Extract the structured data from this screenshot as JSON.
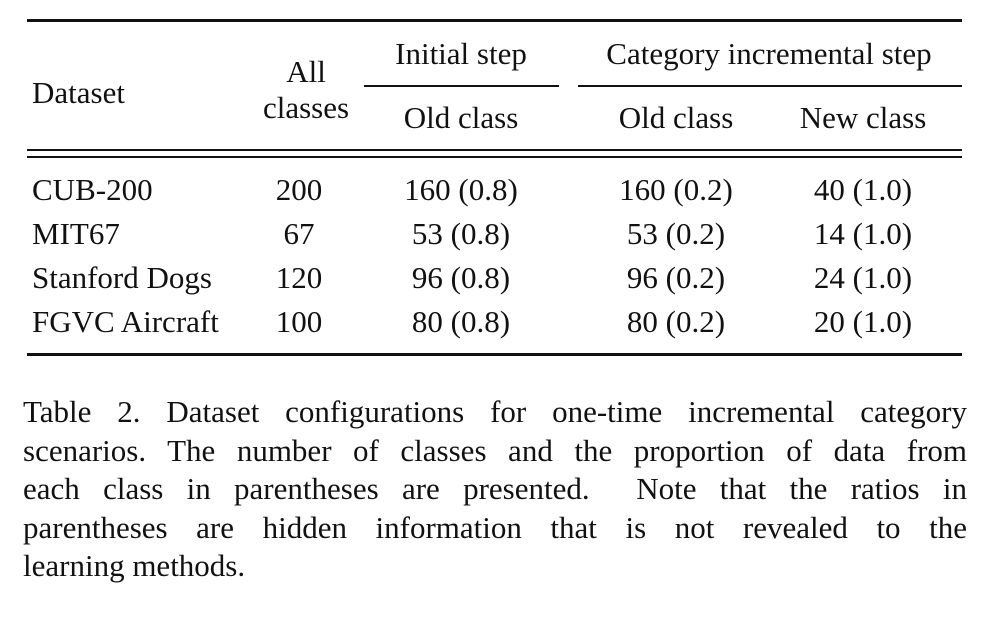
{
  "table": {
    "header": {
      "dataset": "Dataset",
      "all_classes_line1": "All",
      "all_classes_line2": "classes",
      "initial_step": "Initial step",
      "incremental_step": "Category incremental step",
      "initial_old_class": "Old class",
      "incremental_old_class": "Old class",
      "incremental_new_class": "New class"
    },
    "rows": [
      {
        "dataset": "CUB-200",
        "all": "200",
        "initial_old": "160 (0.8)",
        "inc_old": "160 (0.2)",
        "inc_new": "40 (1.0)"
      },
      {
        "dataset": "MIT67",
        "all": "67",
        "initial_old": "53 (0.8)",
        "inc_old": "53 (0.2)",
        "inc_new": "14 (1.0)"
      },
      {
        "dataset": "Stanford Dogs",
        "all": "120",
        "initial_old": "96 (0.8)",
        "inc_old": "96 (0.2)",
        "inc_new": "24 (1.0)"
      },
      {
        "dataset": "FGVC Aircraft",
        "all": "100",
        "initial_old": "80 (0.8)",
        "inc_old": "80 (0.2)",
        "inc_new": "20 (1.0)"
      }
    ]
  },
  "caption": {
    "line1": "Table 2. Dataset configurations for one-time incremental category",
    "line2": "scenarios. The number of classes and the proportion of data from",
    "line3": "each class in parentheses are presented.  Note that the ratios in",
    "line4": "parentheses are hidden information that is not revealed to the",
    "line5": "learning methods."
  }
}
